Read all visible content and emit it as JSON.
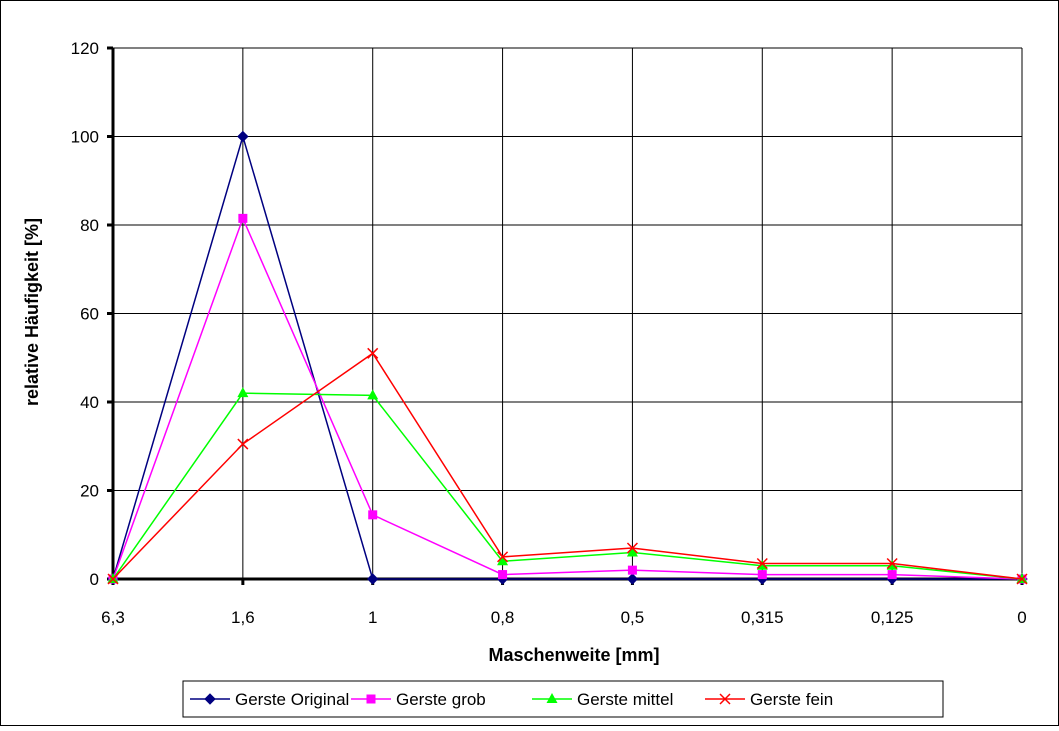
{
  "chart_data": {
    "type": "line",
    "xlabel": "Maschenweite [mm]",
    "ylabel": "relative Häufigkeit [%]",
    "categories": [
      "6,3",
      "1,6",
      "1",
      "0,8",
      "0,5",
      "0,315",
      "0,125",
      "0"
    ],
    "ylim": [
      0,
      120
    ],
    "yticks": [
      0,
      20,
      40,
      60,
      80,
      100,
      120
    ],
    "grid": true,
    "legend_position": "bottom",
    "series": [
      {
        "name": "Gerste Original",
        "color": "#000080",
        "marker": "diamond",
        "values": [
          0,
          100,
          0,
          0,
          0,
          0,
          0,
          0
        ]
      },
      {
        "name": "Gerste grob",
        "color": "#FF00FF",
        "marker": "square",
        "values": [
          0,
          81.5,
          14.5,
          1,
          2,
          1,
          1,
          0
        ]
      },
      {
        "name": "Gerste mittel",
        "color": "#00FF00",
        "marker": "triangle",
        "values": [
          0,
          42,
          41.5,
          4,
          6,
          3,
          3,
          0
        ]
      },
      {
        "name": "Gerste fein",
        "color": "#FF0000",
        "marker": "x",
        "values": [
          0,
          30.5,
          51,
          5,
          7,
          3.5,
          3.5,
          0
        ]
      }
    ]
  }
}
